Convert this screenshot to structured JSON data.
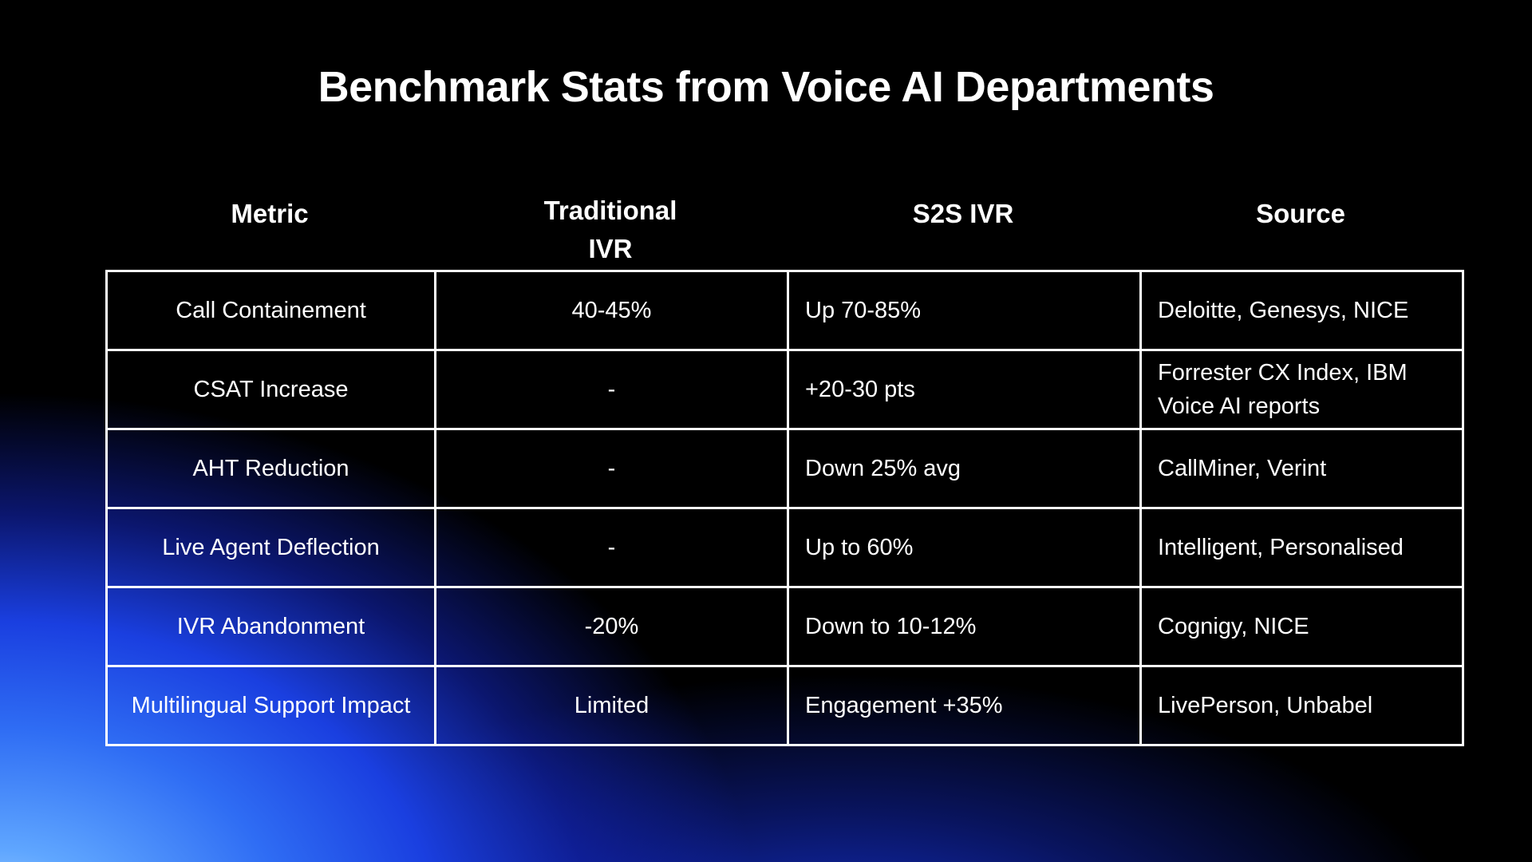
{
  "title": "Benchmark Stats from Voice AI Departments",
  "columns": [
    "Metric",
    "Traditional IVR",
    "S2S IVR",
    "Source"
  ],
  "rows": [
    {
      "metric": "Call Containement",
      "traditional": "40-45%",
      "s2s": "Up 70-85%",
      "source": "Deloitte, Genesys, NICE"
    },
    {
      "metric": "CSAT Increase",
      "traditional": "-",
      "s2s": "+20-30 pts",
      "source": "Forrester CX Index, IBM Voice AI reports"
    },
    {
      "metric": "AHT Reduction",
      "traditional": "-",
      "s2s": "Down 25% avg",
      "source": "CallMiner, Verint"
    },
    {
      "metric": "Live Agent Deflection",
      "traditional": "-",
      "s2s": "Up to 60%",
      "source": "Intelligent, Personalised"
    },
    {
      "metric": "IVR Abandonment",
      "traditional": "-20%",
      "s2s": "Down to 10-12%",
      "source": "Cognigy, NICE"
    },
    {
      "metric": "Multilingual Support Impact",
      "traditional": "Limited",
      "s2s": "Engagement +35%",
      "source": "LivePerson, Unbabel"
    }
  ]
}
